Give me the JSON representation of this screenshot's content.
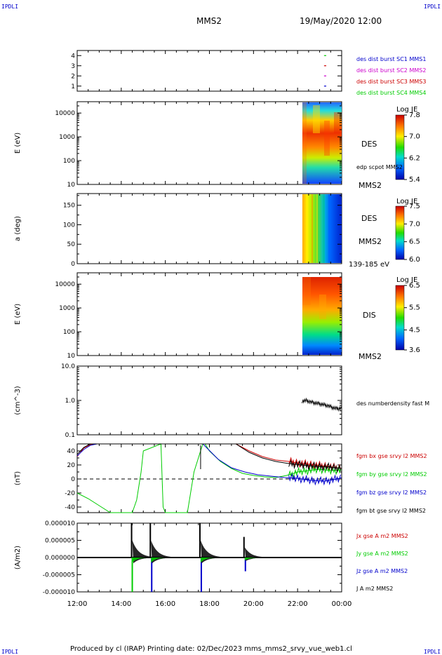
{
  "header": {
    "corner_label": "IPDLI",
    "title": "MMS2",
    "datetime": "19/May/2020 12:00"
  },
  "footer": {
    "text": "Produced by cl (IRAP)    Printing date: 02/Dec/2023    mms_mms2_srvy_vue_web1.cl"
  },
  "colors": {
    "bx": "#cc0000",
    "by": "#00cc00",
    "bz": "#0000cc",
    "bt": "#000000",
    "legend_mms1": "#0000cc",
    "legend_mms2": "#cc00cc",
    "legend_mms3": "#cc0000",
    "legend_mms4": "#00cc00"
  },
  "chart_data": [
    {
      "type": "scatter",
      "name": "burst-availability",
      "yticks": [
        "4",
        "3",
        "2",
        "1"
      ],
      "ylim": [
        0.5,
        4.5
      ],
      "legend": [
        "des dist burst SC1 MMS1",
        "des dist burst SC2 MMS2",
        "des dist burst SC3 MMS3",
        "des dist burst SC4 MMS4"
      ],
      "series": [
        {
          "name": "des dist burst SC4 MMS4",
          "y": 4,
          "x_hours": [
            23.2,
            23.3
          ]
        },
        {
          "name": "des dist burst SC3 MMS3",
          "y": 3,
          "x_hours": [
            23.2,
            23.3
          ]
        },
        {
          "name": "des dist burst SC2 MMS2",
          "y": 2,
          "x_hours": [
            23.2,
            23.3
          ]
        },
        {
          "name": "des dist burst SC1 MMS1",
          "y": 1,
          "x_hours": [
            23.2,
            23.3
          ]
        }
      ]
    },
    {
      "type": "heatmap",
      "name": "des-energy-spectrogram",
      "ylabel": "E (eV)",
      "yscale": "log",
      "ylim": [
        10,
        30000
      ],
      "yticks": [
        "10000",
        "1000",
        "100",
        "10"
      ],
      "instrument": "DES",
      "annotation": "edp scpot MMS2",
      "spacecraft": "MMS2",
      "colorbar": {
        "title": "Log JE",
        "ticks": [
          "7.8",
          "7.0",
          "6.2",
          "5.4"
        ],
        "range": [
          5.4,
          7.8
        ]
      },
      "data_x_range_hours": [
        22.0,
        24.0
      ]
    },
    {
      "type": "heatmap",
      "name": "des-pitch-angle",
      "ylabel": "a (deg)",
      "ylim": [
        0,
        180
      ],
      "yticks": [
        "150",
        "100",
        "50",
        "0"
      ],
      "instrument": "DES",
      "spacecraft": "MMS2",
      "energy_range": "139-185 eV",
      "colorbar": {
        "title": "Log JE",
        "ticks": [
          "7.5",
          "7.0",
          "6.5",
          "6.0"
        ],
        "range": [
          6.0,
          7.5
        ]
      },
      "data_x_range_hours": [
        22.0,
        24.0
      ]
    },
    {
      "type": "heatmap",
      "name": "dis-energy-spectrogram",
      "ylabel": "E (eV)",
      "yscale": "log",
      "ylim": [
        10,
        30000
      ],
      "yticks": [
        "10000",
        "1000",
        "100",
        "10"
      ],
      "instrument": "DIS",
      "spacecraft": "MMS2",
      "colorbar": {
        "title": "Log JE",
        "ticks": [
          "6.5",
          "5.5",
          "4.5",
          "3.6"
        ],
        "range": [
          3.6,
          6.5
        ]
      },
      "data_x_range_hours": [
        22.0,
        24.0
      ]
    },
    {
      "type": "line",
      "name": "number-density",
      "ylabel": "(cm^-3)",
      "yscale": "log",
      "ylim": [
        0.1,
        10.0
      ],
      "yticks": [
        "10.0",
        "1.0",
        "0.1"
      ],
      "legend": [
        "des numberdensity fast M"
      ],
      "x_hours": [
        22.2,
        22.4,
        22.6,
        22.8,
        23.0,
        23.2,
        23.4,
        23.6,
        23.8,
        24.0
      ],
      "values": [
        0.95,
        1.0,
        0.9,
        0.85,
        0.8,
        0.75,
        0.7,
        0.62,
        0.58,
        0.6
      ]
    },
    {
      "type": "line",
      "name": "magnetic-field",
      "ylabel": "(nT)",
      "ylim": [
        -48,
        50
      ],
      "yticks": [
        "40",
        "20",
        "0",
        "-20",
        "-40"
      ],
      "legend": [
        "fgm bx gse srvy l2 MMS2",
        "fgm by gse srvy l2 MMS2",
        "fgm bz gse srvy l2 MMS2",
        "fgm bt gse srvy l2 MMS2"
      ],
      "series": [
        {
          "name": "fgm bx gse srvy l2 MMS2",
          "x": [
            12.0,
            12.3,
            12.6,
            12.9,
            19.2,
            19.8,
            20.4,
            21.0,
            21.6,
            22.2,
            22.8,
            23.4,
            24.0
          ],
          "values": [
            32,
            44,
            49,
            50,
            50,
            40,
            32,
            27,
            25,
            22,
            20,
            18,
            15
          ]
        },
        {
          "name": "fgm by gse srvy l2 MMS2",
          "x": [
            12.0,
            12.5,
            13.0,
            13.5,
            14.0,
            14.5,
            14.7,
            14.9,
            15.0,
            15.8,
            15.9,
            16.0,
            16.1,
            17.0,
            17.3,
            17.6,
            17.7,
            17.8,
            18.0,
            18.5,
            19.0,
            19.5,
            20.0,
            20.5,
            21.0,
            21.5,
            22.0,
            22.5,
            23.0,
            23.5,
            24.0
          ],
          "values": [
            -20,
            -28,
            -38,
            -48,
            -48,
            -48,
            -30,
            10,
            40,
            50,
            -40,
            -48,
            -48,
            -48,
            10,
            40,
            50,
            50,
            40,
            25,
            15,
            8,
            5,
            3,
            2,
            5,
            10,
            12,
            14,
            12,
            13
          ]
        },
        {
          "name": "fgm bz gse srvy l2 MMS2",
          "x": [
            12.0,
            12.3,
            12.6,
            12.9,
            17.7,
            18.4,
            19.0,
            19.6,
            20.2,
            20.8,
            21.4,
            22.0,
            22.6,
            23.2,
            23.8,
            24.0
          ],
          "values": [
            33,
            42,
            48,
            50,
            50,
            28,
            16,
            10,
            6,
            4,
            2,
            1,
            -2,
            -3,
            0,
            2
          ]
        },
        {
          "name": "fgm bt gse srvy l2 MMS2",
          "x": [
            12.0,
            12.3,
            12.6,
            12.9,
            19.2,
            19.8,
            20.4,
            21.0,
            21.6,
            22.2,
            22.8,
            23.4,
            24.0
          ],
          "values": [
            35,
            45,
            50,
            50,
            50,
            38,
            30,
            25,
            22,
            20,
            18,
            17,
            15
          ]
        }
      ]
    },
    {
      "type": "line",
      "name": "current-density",
      "ylabel": "(A/m2)",
      "ylim": [
        -1e-05,
        1e-05
      ],
      "yticks": [
        "0.000010",
        "0.000005",
        "0.000000",
        "-0.000005",
        "-0.000010"
      ],
      "legend": [
        "Jx gse A m2 MMS2",
        "Jy gse A m2 MMS2",
        "Jz gse A m2 MMS2",
        "J A m2 MMS2"
      ],
      "spikes": [
        {
          "x": 14.5,
          "j": 1e-05,
          "jy": -1e-05
        },
        {
          "x": 15.35,
          "j": 1e-05,
          "jz": -1e-05
        },
        {
          "x": 17.6,
          "j": 1e-05,
          "jz": -1e-05
        },
        {
          "x": 19.6,
          "j": 6e-06,
          "jz": -4e-06
        }
      ]
    }
  ],
  "time_axis": {
    "ticks": [
      "12:00",
      "14:00",
      "16:00",
      "18:00",
      "20:00",
      "22:00",
      "00:00"
    ],
    "tick_hours": [
      12,
      14,
      16,
      18,
      20,
      22,
      24
    ],
    "range_hours": [
      12,
      24
    ]
  },
  "panel_labels": {
    "spectro1_instrument": "DES",
    "spectro1_pot": "edp scpot MMS2",
    "spectro1_sc": "MMS2",
    "spectro2_instrument": "DES",
    "spectro2_sc": "MMS2",
    "spectro2_energy": "139-185 eV",
    "spectro3_instrument": "DIS",
    "spectro3_sc": "MMS2"
  }
}
